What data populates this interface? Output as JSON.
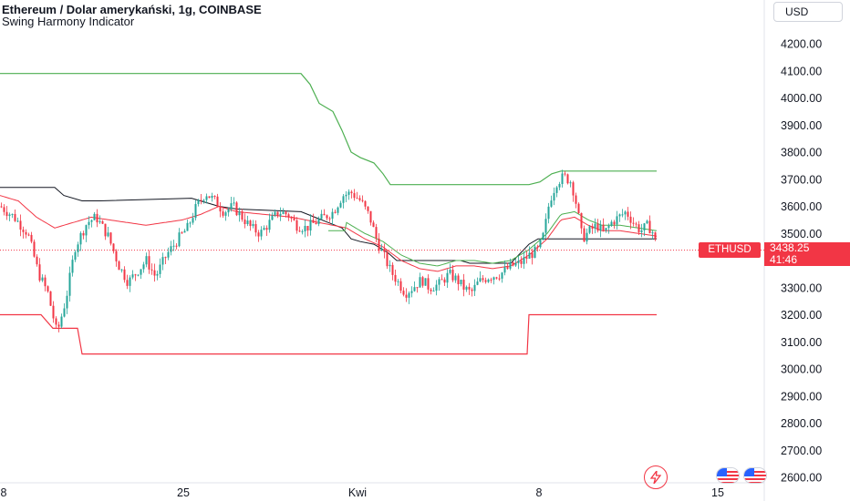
{
  "header": {
    "title": "Ethereum / Dolar amerykański, 1g, COINBASE",
    "indicator": "Swing Harmony Indicator",
    "currency_button": "USD"
  },
  "price_tag": {
    "symbol": "ETHUSD",
    "price": "3438.25",
    "countdown": "41:46"
  },
  "colors": {
    "up": "#26a69a",
    "down": "#f23645",
    "upper_band": "#4caf50",
    "lower_band": "#f23645",
    "mid_line": "#131722",
    "axis_text": "#131722",
    "last_price_line": "#f23645"
  },
  "icons": [
    "lightning-icon",
    "us-flag-icon",
    "us-flag-icon"
  ],
  "chart_data": {
    "type": "candlestick",
    "title": "Ethereum / Dolar amerykański, 1g, COINBASE",
    "y_ticks": [
      "4200.00",
      "4100.00",
      "4000.00",
      "3900.00",
      "3800.00",
      "3700.00",
      "3600.00",
      "3500.00",
      "3400.00",
      "3300.00",
      "3200.00",
      "3100.00",
      "3000.00",
      "2900.00",
      "2800.00",
      "2700.00",
      "2600.00"
    ],
    "ylim": [
      2590,
      4315
    ],
    "x_ticks": [
      "8",
      "25",
      "Kwi",
      "8",
      "15"
    ],
    "last_price": 3438.25,
    "price_path": [
      [
        0,
        3600
      ],
      [
        15,
        3560
      ],
      [
        30,
        3500
      ],
      [
        42,
        3350
      ],
      [
        52,
        3280
      ],
      [
        62,
        3130
      ],
      [
        72,
        3260
      ],
      [
        82,
        3450
      ],
      [
        95,
        3540
      ],
      [
        105,
        3560
      ],
      [
        118,
        3490
      ],
      [
        130,
        3380
      ],
      [
        140,
        3320
      ],
      [
        150,
        3360
      ],
      [
        160,
        3400
      ],
      [
        170,
        3340
      ],
      [
        182,
        3420
      ],
      [
        195,
        3480
      ],
      [
        205,
        3520
      ],
      [
        215,
        3600
      ],
      [
        225,
        3650
      ],
      [
        235,
        3620
      ],
      [
        245,
        3580
      ],
      [
        255,
        3600
      ],
      [
        265,
        3560
      ],
      [
        275,
        3520
      ],
      [
        285,
        3500
      ],
      [
        295,
        3540
      ],
      [
        305,
        3580
      ],
      [
        315,
        3570
      ],
      [
        325,
        3530
      ],
      [
        335,
        3520
      ],
      [
        345,
        3540
      ],
      [
        355,
        3560
      ],
      [
        365,
        3580
      ],
      [
        375,
        3640
      ],
      [
        385,
        3650
      ],
      [
        395,
        3620
      ],
      [
        405,
        3560
      ],
      [
        413,
        3470
      ],
      [
        420,
        3420
      ],
      [
        428,
        3360
      ],
      [
        436,
        3320
      ],
      [
        444,
        3280
      ],
      [
        452,
        3300
      ],
      [
        462,
        3330
      ],
      [
        470,
        3300
      ],
      [
        480,
        3310
      ],
      [
        492,
        3350
      ],
      [
        500,
        3330
      ],
      [
        508,
        3300
      ],
      [
        516,
        3280
      ],
      [
        524,
        3320
      ],
      [
        535,
        3340
      ],
      [
        548,
        3350
      ],
      [
        560,
        3380
      ],
      [
        570,
        3390
      ],
      [
        580,
        3420
      ],
      [
        590,
        3440
      ],
      [
        596,
        3500
      ],
      [
        602,
        3620
      ],
      [
        610,
        3690
      ],
      [
        618,
        3710
      ],
      [
        626,
        3690
      ],
      [
        632,
        3600
      ],
      [
        638,
        3480
      ],
      [
        646,
        3510
      ],
      [
        654,
        3530
      ],
      [
        662,
        3500
      ],
      [
        670,
        3540
      ],
      [
        678,
        3560
      ],
      [
        686,
        3580
      ],
      [
        694,
        3540
      ],
      [
        702,
        3510
      ],
      [
        710,
        3530
      ],
      [
        716,
        3500
      ],
      [
        720,
        3438
      ]
    ],
    "upper_band": [
      [
        0,
        4090
      ],
      [
        330,
        4090
      ],
      [
        340,
        4050
      ],
      [
        350,
        3980
      ],
      [
        365,
        3950
      ],
      [
        375,
        3880
      ],
      [
        385,
        3800
      ],
      [
        395,
        3780
      ],
      [
        410,
        3760
      ],
      [
        420,
        3720
      ],
      [
        428,
        3680
      ],
      [
        580,
        3680
      ],
      [
        592,
        3690
      ],
      [
        605,
        3720
      ],
      [
        615,
        3730
      ],
      [
        720,
        3730
      ]
    ],
    "mid_line": [
      [
        0,
        3670
      ],
      [
        60,
        3670
      ],
      [
        70,
        3640
      ],
      [
        90,
        3620
      ],
      [
        110,
        3620
      ],
      [
        210,
        3630
      ],
      [
        240,
        3600
      ],
      [
        260,
        3590
      ],
      [
        330,
        3580
      ],
      [
        345,
        3560
      ],
      [
        360,
        3540
      ],
      [
        375,
        3520
      ],
      [
        385,
        3480
      ],
      [
        395,
        3470
      ],
      [
        410,
        3460
      ],
      [
        425,
        3430
      ],
      [
        435,
        3400
      ],
      [
        505,
        3400
      ],
      [
        515,
        3390
      ],
      [
        560,
        3390
      ],
      [
        580,
        3460
      ],
      [
        590,
        3480
      ],
      [
        720,
        3480
      ]
    ],
    "lower_band": [
      [
        0,
        3200
      ],
      [
        45,
        3200
      ],
      [
        58,
        3150
      ],
      [
        85,
        3150
      ],
      [
        90,
        3055
      ],
      [
        578,
        3055
      ],
      [
        580,
        3200
      ],
      [
        720,
        3200
      ]
    ],
    "swing_line": [
      [
        0,
        3640
      ],
      [
        20,
        3620
      ],
      [
        40,
        3560
      ],
      [
        60,
        3520
      ],
      [
        80,
        3540
      ],
      [
        100,
        3560
      ],
      [
        120,
        3550
      ],
      [
        140,
        3540
      ],
      [
        160,
        3530
      ],
      [
        180,
        3540
      ],
      [
        200,
        3550
      ],
      [
        220,
        3570
      ],
      [
        240,
        3600
      ],
      [
        260,
        3580
      ],
      [
        290,
        3570
      ],
      [
        320,
        3560
      ],
      [
        350,
        3540
      ],
      [
        380,
        3520
      ],
      [
        400,
        3480
      ],
      [
        420,
        3450
      ],
      [
        440,
        3400
      ],
      [
        460,
        3370
      ],
      [
        480,
        3360
      ],
      [
        500,
        3380
      ],
      [
        520,
        3380
      ],
      [
        540,
        3370
      ],
      [
        560,
        3380
      ],
      [
        580,
        3420
      ],
      [
        600,
        3480
      ],
      [
        615,
        3550
      ],
      [
        630,
        3560
      ],
      [
        645,
        3530
      ],
      [
        660,
        3510
      ],
      [
        680,
        3510
      ],
      [
        700,
        3500
      ],
      [
        720,
        3490
      ]
    ]
  }
}
